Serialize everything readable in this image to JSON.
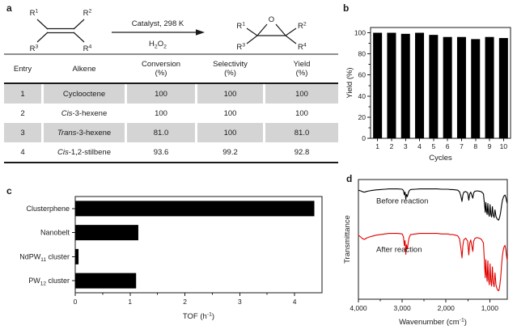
{
  "figure": {
    "panel_labels": {
      "a": "a",
      "b": "b",
      "c": "c",
      "d": "d"
    }
  },
  "reaction": {
    "substituents": [
      "R^{1}",
      "R^{2}",
      "R^{3}",
      "R^{4}"
    ],
    "conditions_top": "Catalyst, 298 K",
    "conditions_bottom": "H_{2}O_{2}",
    "epoxide_oxygen": "O"
  },
  "table": {
    "headers": [
      "Entry",
      "Alkene",
      "Conversion\n(%)",
      "Selectivity\n(%)",
      "Yield\n(%)"
    ],
    "shade_color": "#d4d4d4",
    "rows": [
      {
        "entry": "1",
        "alkene_italic": "",
        "alkene_text": "Cyclooctene",
        "conversion": "100",
        "selectivity": "100",
        "yield": "100",
        "shaded": true
      },
      {
        "entry": "2",
        "alkene_italic": "Cis",
        "alkene_text": "-3-hexene",
        "conversion": "100",
        "selectivity": "100",
        "yield": "100",
        "shaded": false
      },
      {
        "entry": "3",
        "alkene_italic": "Trans",
        "alkene_text": "-3-hexene",
        "conversion": "81.0",
        "selectivity": "100",
        "yield": "81.0",
        "shaded": true
      },
      {
        "entry": "4",
        "alkene_italic": "Cis",
        "alkene_text": "-1,2-stilbene",
        "conversion": "93.6",
        "selectivity": "99.2",
        "yield": "92.8",
        "shaded": false
      }
    ]
  },
  "chart_data": [
    {
      "id": "cycles",
      "type": "bar",
      "title": "",
      "categories": [
        "1",
        "2",
        "3",
        "4",
        "5",
        "6",
        "7",
        "8",
        "9",
        "10"
      ],
      "values": [
        100,
        100,
        99,
        100,
        98,
        96,
        96,
        94,
        96,
        95
      ],
      "xlabel": "Cycles",
      "ylabel": "Yield (%)",
      "ylim": [
        0,
        105
      ],
      "yticks": [
        0,
        20,
        40,
        60,
        80,
        100
      ],
      "ytick_minor_step": 10,
      "bar_color": "#000000",
      "grid": false
    },
    {
      "id": "tof",
      "type": "bar-horizontal",
      "title": "",
      "categories": [
        "Clusterphene",
        "Nanobelt",
        "NdPW_{11} cluster",
        "PW_{12} cluster"
      ],
      "values": [
        4.36,
        1.15,
        0.06,
        1.11
      ],
      "xlabel": "TOF (h^{-1})",
      "xlim": [
        0,
        4.5
      ],
      "xticks": [
        0,
        1,
        2,
        3,
        4
      ],
      "xtick_minor_step": 0.5,
      "bar_color": "#000000",
      "grid": false
    },
    {
      "id": "ir",
      "type": "line",
      "title": "",
      "xlabel": "Wavenumber (cm^{-1})",
      "ylabel": "Transmittance",
      "x_range": [
        4000,
        600
      ],
      "x_reversed": true,
      "xticks": [
        4000,
        3000,
        2000,
        1000
      ],
      "xtick_labels": [
        "4,000",
        "3,000",
        "2,000",
        "1,000"
      ],
      "xtick_minor": [
        3500,
        2500,
        1500
      ],
      "legend_position": "inline",
      "series": [
        {
          "name": "Before reaction",
          "color": "#000000",
          "offset_frac": 0.07,
          "amp_frac": 0.27,
          "points": [
            [
              4000,
              93
            ],
            [
              3950,
              91
            ],
            [
              3900,
              88
            ],
            [
              3860,
              87
            ],
            [
              3820,
              89
            ],
            [
              3750,
              91
            ],
            [
              3700,
              92
            ],
            [
              3600,
              94
            ],
            [
              3500,
              95
            ],
            [
              3400,
              96
            ],
            [
              3300,
              97
            ],
            [
              3200,
              97
            ],
            [
              3100,
              97
            ],
            [
              3000,
              96
            ],
            [
              2970,
              92
            ],
            [
              2952,
              79
            ],
            [
              2936,
              87
            ],
            [
              2918,
              66
            ],
            [
              2902,
              80
            ],
            [
              2882,
              73
            ],
            [
              2862,
              84
            ],
            [
              2842,
              91
            ],
            [
              2810,
              95
            ],
            [
              2700,
              96
            ],
            [
              2600,
              97
            ],
            [
              2500,
              97
            ],
            [
              2400,
              97
            ],
            [
              2300,
              97
            ],
            [
              2200,
              97
            ],
            [
              2100,
              96
            ],
            [
              2000,
              96
            ],
            [
              1950,
              96
            ],
            [
              1900,
              95
            ],
            [
              1840,
              95
            ],
            [
              1780,
              94
            ],
            [
              1730,
              93
            ],
            [
              1690,
              88
            ],
            [
              1660,
              75
            ],
            [
              1635,
              58
            ],
            [
              1615,
              78
            ],
            [
              1595,
              87
            ],
            [
              1550,
              89
            ],
            [
              1505,
              85
            ],
            [
              1480,
              62
            ],
            [
              1460,
              81
            ],
            [
              1435,
              87
            ],
            [
              1408,
              76
            ],
            [
              1388,
              68
            ],
            [
              1368,
              85
            ],
            [
              1335,
              90
            ],
            [
              1290,
              91
            ],
            [
              1240,
              90
            ],
            [
              1190,
              88
            ],
            [
              1145,
              82
            ],
            [
              1118,
              45
            ],
            [
              1102,
              24
            ],
            [
              1090,
              55
            ],
            [
              1074,
              30
            ],
            [
              1060,
              18
            ],
            [
              1044,
              52
            ],
            [
              1028,
              22
            ],
            [
              1010,
              12
            ],
            [
              994,
              48
            ],
            [
              976,
              18
            ],
            [
              958,
              10
            ],
            [
              940,
              42
            ],
            [
              922,
              16
            ],
            [
              902,
              8
            ],
            [
              880,
              32
            ],
            [
              858,
              12
            ],
            [
              836,
              5
            ],
            [
              816,
              2
            ],
            [
              800,
              0
            ],
            [
              786,
              4
            ],
            [
              770,
              12
            ],
            [
              752,
              25
            ],
            [
              732,
              45
            ],
            [
              712,
              60
            ],
            [
              692,
              70
            ],
            [
              672,
              76
            ],
            [
              652,
              78
            ],
            [
              632,
              70
            ],
            [
              616,
              60
            ],
            [
              600,
              52
            ]
          ]
        },
        {
          "name": "After reaction",
          "color": "#e00000",
          "offset_frac": 0.43,
          "amp_frac": 0.5,
          "points": [
            [
              4000,
              93
            ],
            [
              3950,
              90
            ],
            [
              3900,
              87
            ],
            [
              3860,
              86
            ],
            [
              3820,
              88
            ],
            [
              3750,
              90
            ],
            [
              3700,
              91
            ],
            [
              3600,
              93
            ],
            [
              3500,
              94
            ],
            [
              3400,
              95
            ],
            [
              3300,
              96
            ],
            [
              3200,
              96
            ],
            [
              3100,
              96
            ],
            [
              3000,
              95
            ],
            [
              2970,
              90
            ],
            [
              2952,
              76
            ],
            [
              2936,
              84
            ],
            [
              2918,
              61
            ],
            [
              2902,
              77
            ],
            [
              2882,
              70
            ],
            [
              2862,
              81
            ],
            [
              2842,
              89
            ],
            [
              2810,
              94
            ],
            [
              2700,
              95
            ],
            [
              2600,
              96
            ],
            [
              2500,
              96
            ],
            [
              2400,
              96
            ],
            [
              2300,
              96
            ],
            [
              2200,
              96
            ],
            [
              2100,
              95
            ],
            [
              2000,
              95
            ],
            [
              1950,
              95
            ],
            [
              1900,
              94
            ],
            [
              1840,
              94
            ],
            [
              1780,
              93
            ],
            [
              1730,
              92
            ],
            [
              1690,
              87
            ],
            [
              1660,
              72
            ],
            [
              1635,
              55
            ],
            [
              1615,
              76
            ],
            [
              1595,
              85
            ],
            [
              1550,
              88
            ],
            [
              1505,
              83
            ],
            [
              1480,
              60
            ],
            [
              1460,
              79
            ],
            [
              1435,
              85
            ],
            [
              1408,
              74
            ],
            [
              1388,
              66
            ],
            [
              1368,
              83
            ],
            [
              1335,
              88
            ],
            [
              1290,
              89
            ],
            [
              1240,
              88
            ],
            [
              1190,
              86
            ],
            [
              1145,
              80
            ],
            [
              1118,
              42
            ],
            [
              1102,
              22
            ],
            [
              1090,
              52
            ],
            [
              1074,
              28
            ],
            [
              1060,
              16
            ],
            [
              1044,
              50
            ],
            [
              1028,
              20
            ],
            [
              1010,
              10
            ],
            [
              994,
              45
            ],
            [
              976,
              16
            ],
            [
              958,
              8
            ],
            [
              940,
              40
            ],
            [
              922,
              14
            ],
            [
              902,
              7
            ],
            [
              880,
              30
            ],
            [
              858,
              10
            ],
            [
              836,
              4
            ],
            [
              816,
              1
            ],
            [
              800,
              0
            ],
            [
              786,
              2
            ],
            [
              770,
              10
            ],
            [
              752,
              22
            ],
            [
              732,
              42
            ],
            [
              712,
              58
            ],
            [
              692,
              68
            ],
            [
              672,
              74
            ],
            [
              652,
              76
            ],
            [
              632,
              68
            ],
            [
              616,
              58
            ],
            [
              600,
              50
            ]
          ]
        }
      ]
    }
  ]
}
